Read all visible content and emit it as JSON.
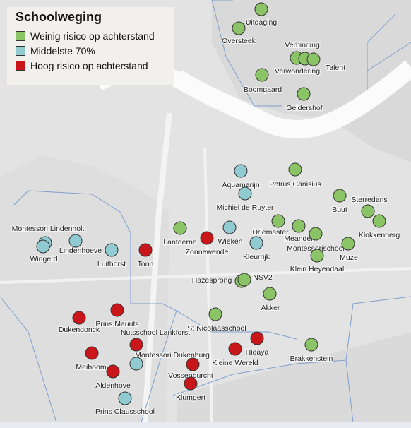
{
  "legend": {
    "title": "Schoolweging",
    "items": [
      {
        "label": "Weinig risico op achterstand",
        "color": "#8bc466"
      },
      {
        "label": "Middelste 70%",
        "color": "#8fcbd1"
      },
      {
        "label": "Hoog risico op achterstand",
        "color": "#c8161b"
      }
    ]
  },
  "schools": [
    {
      "name": "Uitdaging",
      "group": 0
    },
    {
      "name": "Oversteek",
      "group": 0
    },
    {
      "name": "Verbinding",
      "group": 0
    },
    {
      "name": "Verwondering",
      "group": 0
    },
    {
      "name": "Talent",
      "group": 0
    },
    {
      "name": "Boomgaard",
      "group": 0
    },
    {
      "name": "Geldershof",
      "group": 0
    },
    {
      "name": "Petrus Canisius",
      "group": 0
    },
    {
      "name": "Buut",
      "group": 0
    },
    {
      "name": "Sterredans",
      "group": 0
    },
    {
      "name": "Klokkenberg",
      "group": 0
    },
    {
      "name": "Lanteerne",
      "group": 0
    },
    {
      "name": "Driemaster",
      "group": 0
    },
    {
      "name": "Meander",
      "group": 0
    },
    {
      "name": "Montessorischool",
      "group": 0
    },
    {
      "name": "Klein Heyendaal",
      "group": 0
    },
    {
      "name": "Muze",
      "group": 0
    },
    {
      "name": "Hazesprong",
      "group": 0
    },
    {
      "name": "NSV2",
      "group": 0
    },
    {
      "name": "Akker",
      "group": 0
    },
    {
      "name": "St Nicolaasschool",
      "group": 0
    },
    {
      "name": "Brakkenstein",
      "group": 0
    },
    {
      "name": "Aquamarijn",
      "group": 1
    },
    {
      "name": "Michiel de Ruyter",
      "group": 1
    },
    {
      "name": "Wieken",
      "group": 1
    },
    {
      "name": "Kleurrijk",
      "group": 1
    },
    {
      "name": "Montessori Lindenholt",
      "group": 1
    },
    {
      "name": "Wingerd",
      "group": 1
    },
    {
      "name": "Lindenhoeve",
      "group": 1
    },
    {
      "name": "Luithorst",
      "group": 1
    },
    {
      "name": "Montessori Dukenburg",
      "group": 1
    },
    {
      "name": "Prins Clausschool",
      "group": 1
    },
    {
      "name": "Zonnewende",
      "group": 2
    },
    {
      "name": "Toon",
      "group": 2
    },
    {
      "name": "Dukendonck",
      "group": 2
    },
    {
      "name": "Prins Maurits",
      "group": 2
    },
    {
      "name": "Nutsschool Lankforst",
      "group": 2
    },
    {
      "name": "Meiboom",
      "group": 2
    },
    {
      "name": "Aldenhove",
      "group": 2
    },
    {
      "name": "Vossenburcht",
      "group": 2
    },
    {
      "name": "Klumpert",
      "group": 2
    },
    {
      "name": "Kleine Wereld",
      "group": 2
    },
    {
      "name": "Hidaya",
      "group": 2
    }
  ]
}
